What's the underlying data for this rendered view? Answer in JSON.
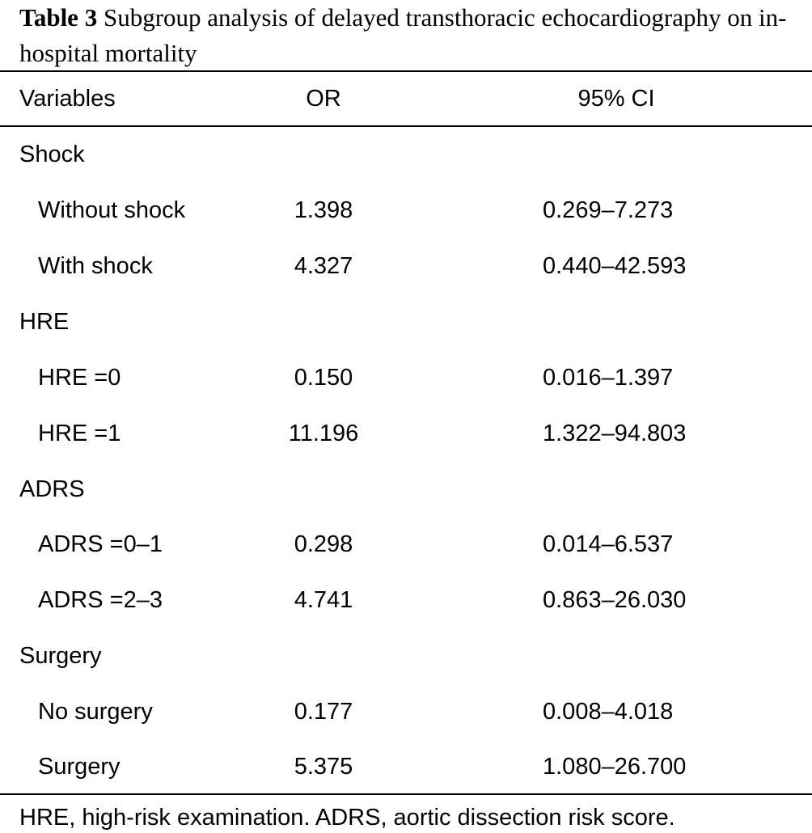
{
  "caption": {
    "label": "Table 3",
    "text": "Subgroup analysis of delayed transthoracic echocardiography on in-hospital mortality"
  },
  "table": {
    "headers": {
      "variables": "Variables",
      "or": "OR",
      "ci": "95% CI"
    },
    "groups": [
      {
        "name": "Shock",
        "rows": [
          {
            "label": "Without shock",
            "or": "1.398",
            "ci": "0.269–7.273"
          },
          {
            "label": "With shock",
            "or": "4.327",
            "ci": "0.440–42.593"
          }
        ]
      },
      {
        "name": "HRE",
        "rows": [
          {
            "label": "HRE =0",
            "or": "0.150",
            "ci": "0.016–1.397"
          },
          {
            "label": "HRE =1",
            "or": "11.196",
            "ci": "1.322–94.803"
          }
        ]
      },
      {
        "name": "ADRS",
        "rows": [
          {
            "label": "ADRS =0–1",
            "or": "0.298",
            "ci": "0.014–6.537"
          },
          {
            "label": "ADRS =2–3",
            "or": "4.741",
            "ci": "0.863–26.030"
          }
        ]
      },
      {
        "name": "Surgery",
        "rows": [
          {
            "label": "No surgery",
            "or": "0.177",
            "ci": "0.008–4.018"
          },
          {
            "label": "Surgery",
            "or": "5.375",
            "ci": "1.080–26.700"
          }
        ]
      }
    ]
  },
  "footnote": "HRE, high-risk examination. ADRS, aortic dissection risk score."
}
